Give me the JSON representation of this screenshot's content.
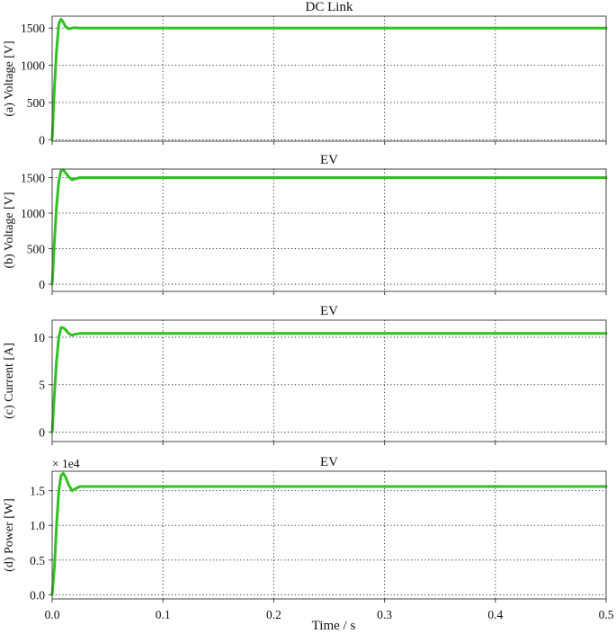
{
  "figure": {
    "xlabel": "Time / s",
    "xlim": [
      0,
      0.5
    ],
    "xticks": [
      0.0,
      0.1,
      0.2,
      0.3,
      0.4,
      0.5
    ],
    "xtick_labels": [
      "0.0",
      "0.1",
      "0.2",
      "0.3",
      "0.4",
      "0.5"
    ],
    "color": "#2fc11f"
  },
  "chart_data": [
    {
      "type": "line",
      "title": "DC Link",
      "ylabel": "(a) Voltage [V]",
      "ylim": [
        -20,
        1660
      ],
      "yticks": [
        0,
        500,
        1000,
        1500
      ],
      "ytick_labels": [
        "0",
        "500",
        "1000",
        "1500"
      ],
      "grid": true,
      "series": [
        {
          "x": [
            0,
            0.002,
            0.004,
            0.006,
            0.008,
            0.01,
            0.012,
            0.015,
            0.018,
            0.02,
            0.025,
            0.03,
            0.1,
            0.2,
            0.3,
            0.4,
            0.5
          ],
          "y": [
            0,
            700,
            1200,
            1560,
            1620,
            1580,
            1520,
            1490,
            1500,
            1505,
            1500,
            1500,
            1500,
            1500,
            1500,
            1500,
            1500
          ]
        }
      ]
    },
    {
      "type": "line",
      "title": "EV",
      "ylabel": "(b) Voltage [V]",
      "ylim": [
        -100,
        1620
      ],
      "yticks": [
        0,
        500,
        1000,
        1500
      ],
      "ytick_labels": [
        "0",
        "500",
        "1000",
        "1500"
      ],
      "grid": true,
      "series": [
        {
          "x": [
            0,
            0.002,
            0.004,
            0.006,
            0.008,
            0.01,
            0.012,
            0.015,
            0.018,
            0.02,
            0.025,
            0.03,
            0.1,
            0.2,
            0.3,
            0.4,
            0.5
          ],
          "y": [
            0,
            600,
            1100,
            1450,
            1600,
            1610,
            1570,
            1510,
            1470,
            1480,
            1500,
            1500,
            1500,
            1500,
            1500,
            1500,
            1500
          ]
        }
      ]
    },
    {
      "type": "line",
      "title": "EV",
      "ylabel": "(c) Current [A]",
      "ylim": [
        -1.0,
        11.8
      ],
      "yticks": [
        0,
        5,
        10
      ],
      "ytick_labels": [
        "0",
        "5",
        "10"
      ],
      "grid": true,
      "series": [
        {
          "x": [
            0,
            0.002,
            0.004,
            0.006,
            0.008,
            0.01,
            0.012,
            0.015,
            0.018,
            0.02,
            0.025,
            0.03,
            0.1,
            0.2,
            0.3,
            0.4,
            0.5
          ],
          "y": [
            0,
            4.0,
            7.5,
            10.0,
            11.0,
            11.0,
            10.8,
            10.4,
            10.2,
            10.3,
            10.4,
            10.4,
            10.4,
            10.4,
            10.4,
            10.4,
            10.4
          ]
        }
      ]
    },
    {
      "type": "line",
      "title": "EV",
      "ylabel": "(d) Power [W]",
      "scale_label": "× 1e4",
      "ylim": [
        -0.06,
        1.78
      ],
      "yticks": [
        0.0,
        0.5,
        1.0,
        1.5
      ],
      "ytick_labels": [
        "0.0",
        "0.5",
        "1.0",
        "1.5"
      ],
      "grid": true,
      "series": [
        {
          "x": [
            0,
            0.002,
            0.004,
            0.006,
            0.008,
            0.01,
            0.012,
            0.015,
            0.018,
            0.02,
            0.025,
            0.03,
            0.1,
            0.2,
            0.3,
            0.4,
            0.5
          ],
          "y": [
            0,
            0.4,
            1.0,
            1.5,
            1.72,
            1.75,
            1.7,
            1.58,
            1.5,
            1.52,
            1.56,
            1.56,
            1.56,
            1.56,
            1.56,
            1.56,
            1.56
          ]
        }
      ]
    }
  ]
}
